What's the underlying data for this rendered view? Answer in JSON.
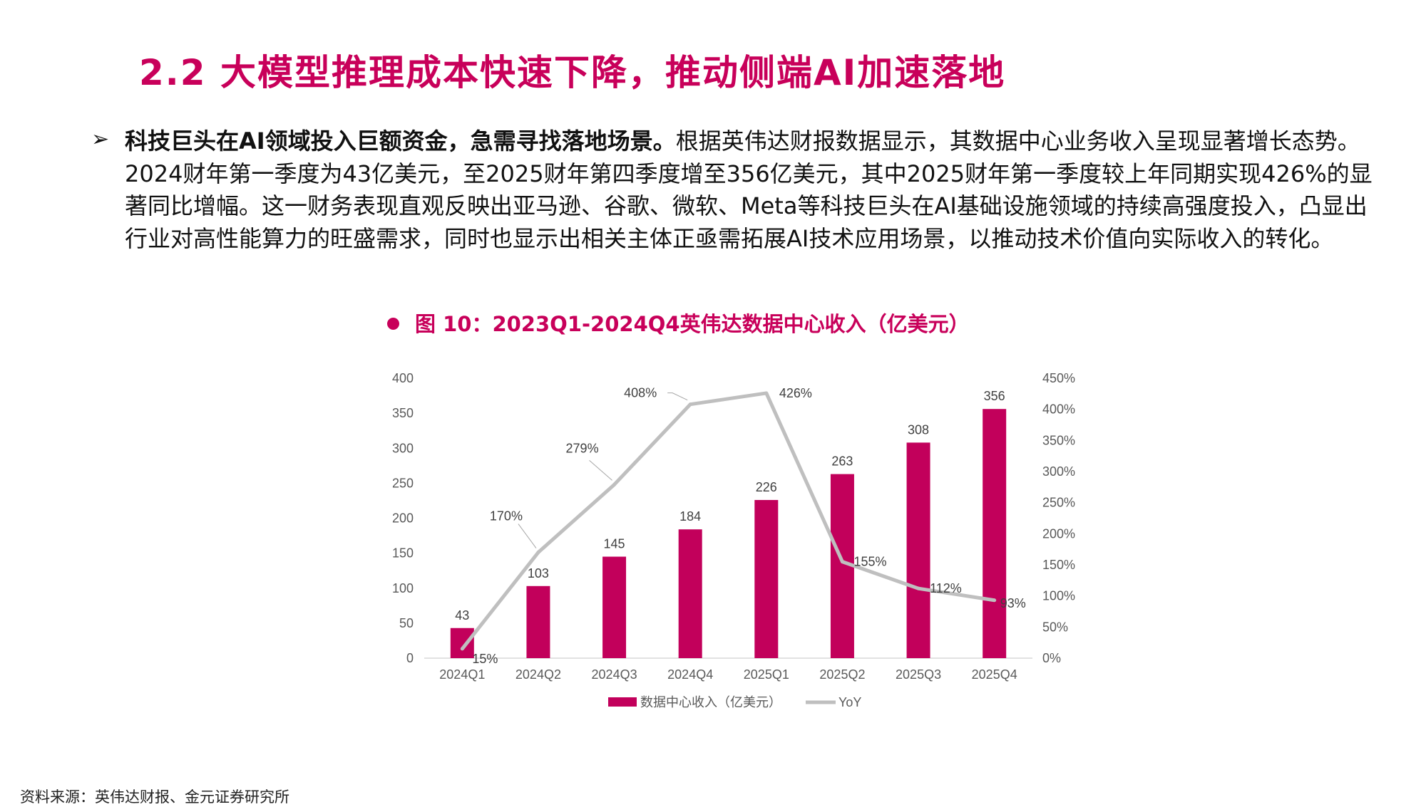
{
  "header": {
    "title": "2.2 大模型推理成本快速下降，推动侧端AI加速落地"
  },
  "body": {
    "bullet_icon": "arrow-bullet-icon",
    "bold_lead": "科技巨头在AI领域投入巨额资金，急需寻找落地场景。",
    "text": "根据英伟达财报数据显示，其数据中心业务收入呈现显著增长态势。2024财年第一季度为43亿美元，至2025财年第四季度增至356亿美元，其中2025财年第一季度较上年同期实现426%的显著同比增幅。这一财务表现直观反映出亚马逊、谷歌、微软、Meta等科技巨头在AI基础设施领域的持续高强度投入，凸显出行业对高性能算力的旺盛需求，同时也显示出相关主体正亟需拓展AI技术应用场景，以推动技术价值向实际收入的转化。"
  },
  "caption": "图 10：2023Q1-2024Q4英伟达数据中心收入（亿美元）",
  "source": "资料来源：英伟达财报、金元证券研究所",
  "colors": {
    "accent": "#C8005A",
    "bar": "#C2005B",
    "line": "#BFBFBF"
  },
  "chart_data": {
    "type": "bar+line",
    "categories": [
      "2024Q1",
      "2024Q2",
      "2024Q3",
      "2024Q4",
      "2025Q1",
      "2025Q2",
      "2025Q3",
      "2025Q4"
    ],
    "series": [
      {
        "name": "数据中心收入（亿美元）",
        "type": "bar",
        "axis": "left",
        "values": [
          43,
          103,
          145,
          184,
          226,
          263,
          308,
          356
        ],
        "labels": [
          "43",
          "103",
          "145",
          "184",
          "226",
          "263",
          "308",
          "356"
        ]
      },
      {
        "name": "YoY",
        "type": "line",
        "axis": "right",
        "values": [
          15,
          170,
          279,
          408,
          426,
          155,
          112,
          93
        ],
        "labels": [
          "15%",
          "170%",
          "279%",
          "408%",
          "426%",
          "155%",
          "112%",
          "93%"
        ]
      }
    ],
    "left_axis": {
      "ylim": [
        0,
        400
      ],
      "ticks": [
        "0",
        "50",
        "100",
        "150",
        "200",
        "250",
        "300",
        "350",
        "400"
      ]
    },
    "right_axis": {
      "ylim": [
        0,
        450
      ],
      "ticks": [
        "0%",
        "50%",
        "100%",
        "150%",
        "200%",
        "250%",
        "300%",
        "350%",
        "400%",
        "450%"
      ]
    },
    "grid": false,
    "legend": "bottom"
  }
}
